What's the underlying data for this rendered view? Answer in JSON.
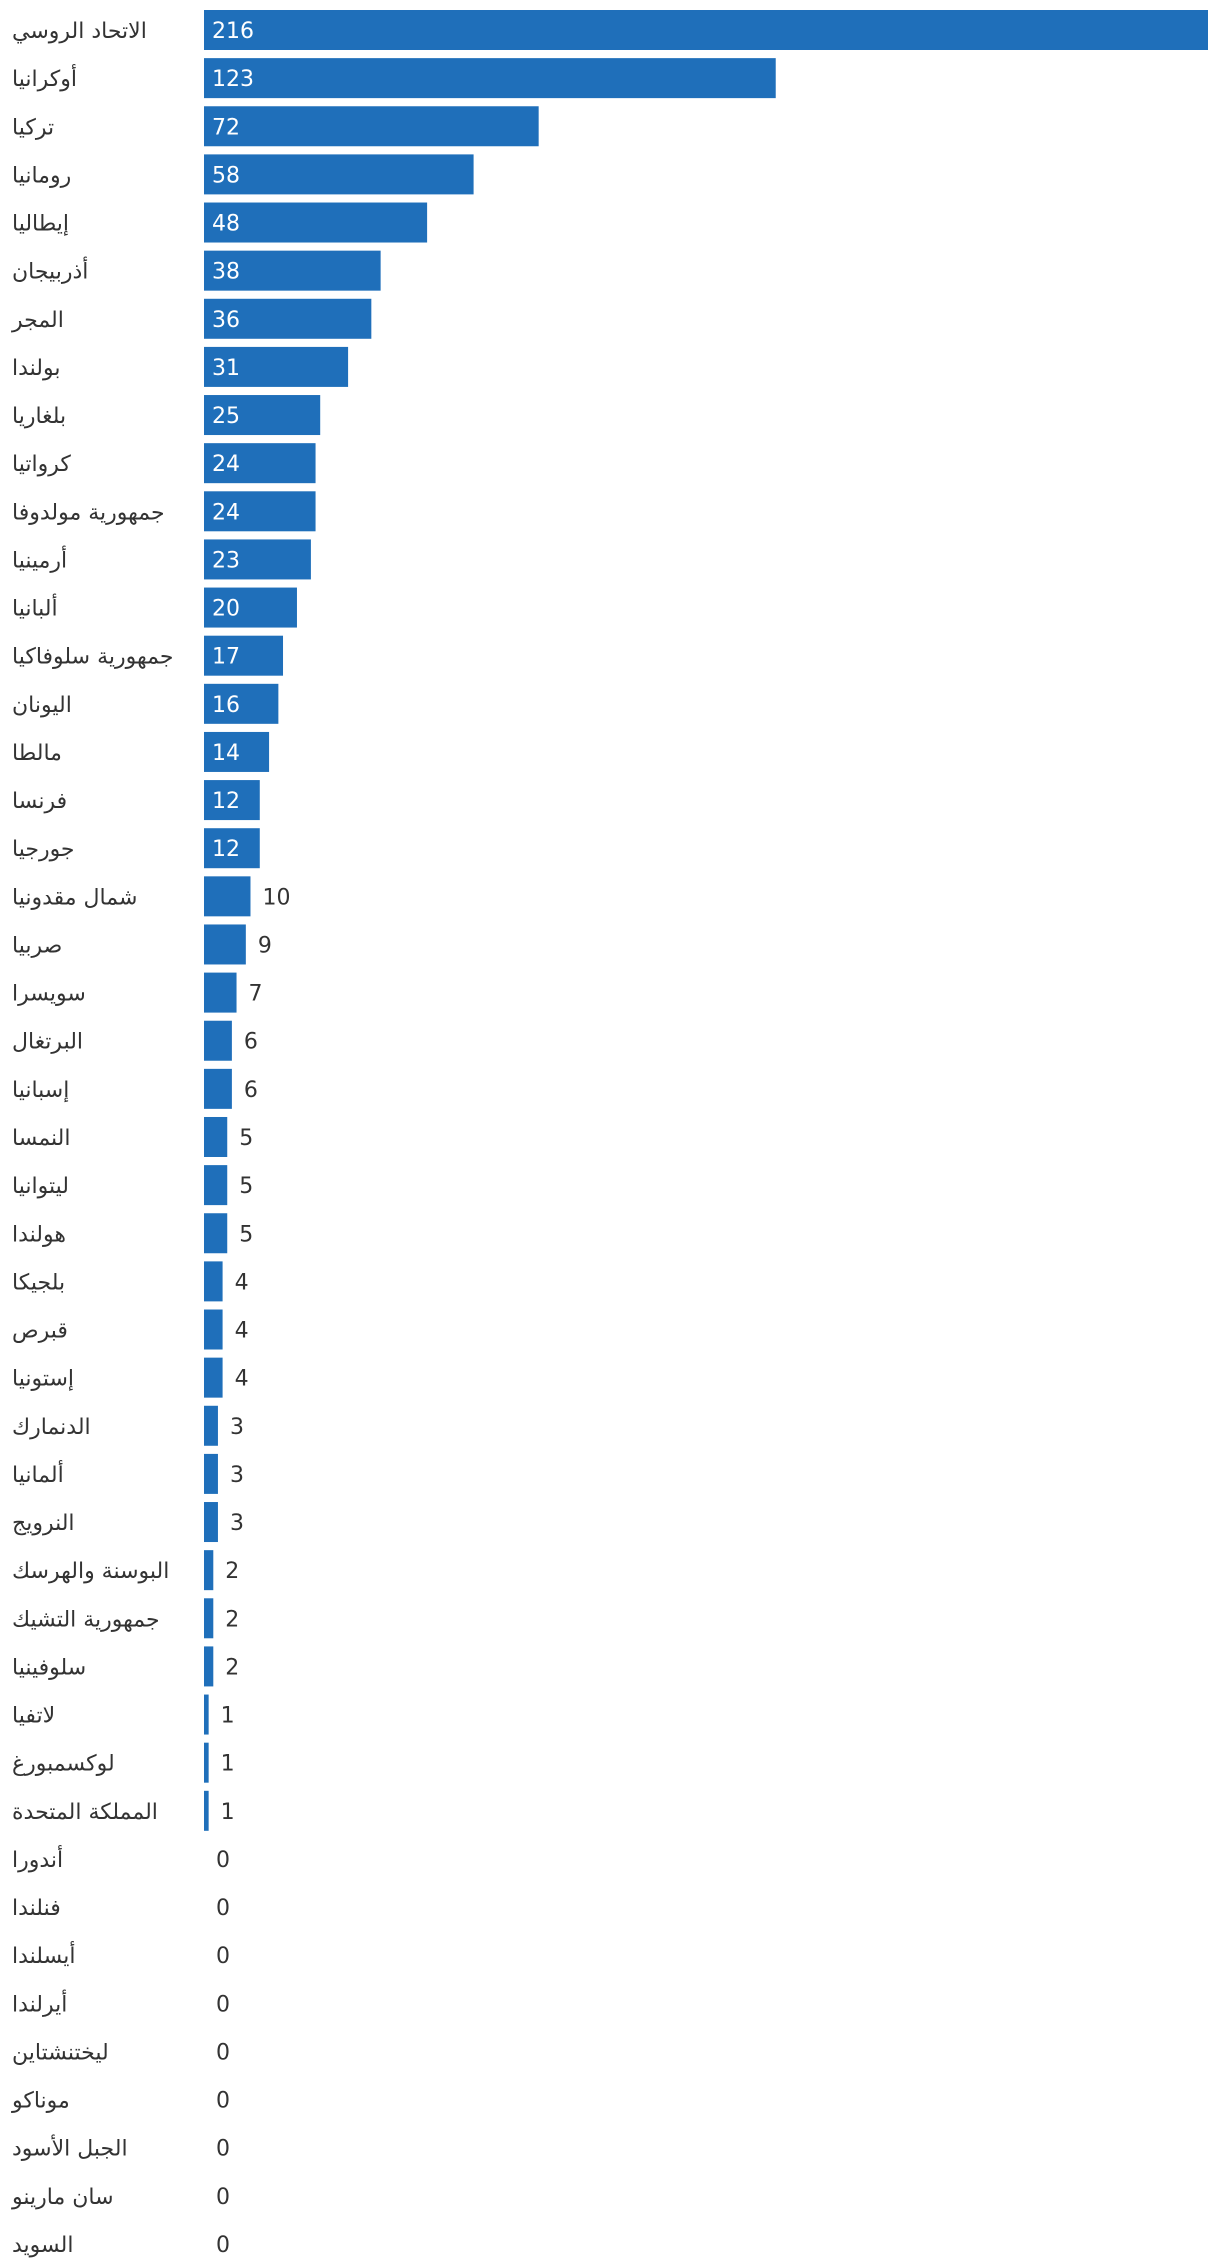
{
  "chart_data": {
    "type": "bar",
    "orientation": "horizontal",
    "categories": [
      "الاتحاد الروسي",
      "أوكرانيا",
      "تركيا",
      "رومانيا",
      "إيطاليا",
      "أذربيجان",
      "المجر",
      "بولندا",
      "بلغاريا",
      "كرواتيا",
      "جمهورية مولدوفا",
      "أرمينيا",
      "ألبانيا",
      "جمهورية سلوفاكيا",
      "اليونان",
      "مالطا",
      "فرنسا",
      "جورجيا",
      "شمال مقدونيا",
      "صربيا",
      "سويسرا",
      "البرتغال",
      "إسبانيا",
      "النمسا",
      "ليتوانيا",
      "هولندا",
      "بلجيكا",
      "قبرص",
      "إستونيا",
      "الدنمارك",
      "ألمانيا",
      "النرويج",
      "البوسنة والهرسك",
      "جمهورية التشيك",
      "سلوفينيا",
      "لاتفيا",
      "لوكسمبورغ",
      "المملكة المتحدة",
      "أندورا",
      "فنلندا",
      "أيسلندا",
      "أيرلندا",
      "ليختنشتاين",
      "موناكو",
      "الجبل الأسود",
      "سان مارينو",
      "السويد"
    ],
    "values": [
      216,
      123,
      72,
      58,
      48,
      38,
      36,
      31,
      25,
      24,
      24,
      23,
      20,
      17,
      16,
      14,
      12,
      12,
      10,
      9,
      7,
      6,
      6,
      5,
      5,
      5,
      4,
      4,
      4,
      3,
      3,
      3,
      2,
      2,
      2,
      1,
      1,
      1,
      0,
      0,
      0,
      0,
      0,
      0,
      0,
      0,
      0
    ],
    "xlim": [
      0,
      216
    ],
    "bar_color": "#1f6fba",
    "inside_label_color": "#ffffff",
    "outside_label_color": "#333333",
    "grid": false,
    "legend": false
  }
}
